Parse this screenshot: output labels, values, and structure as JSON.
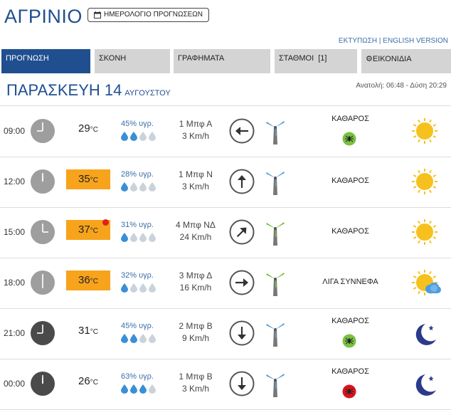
{
  "header": {
    "city": "ΑΓΡΙΝΙΟ",
    "calendar_label": "ΗΜΕΡΟΛΟΓΙΟ ΠΡΟΓΝΩΣΕΩΝ",
    "print_label": "ΕΚΤΥΠΩΣΗ",
    "separator": "|",
    "english_label": "ENGLISH VERSION"
  },
  "tabs": [
    {
      "label": "ΠΡΟΓΝΩΣΗ",
      "active": true
    },
    {
      "label": "ΣΚΟΝΗ"
    },
    {
      "label": "ΓΡΑΦΗΜΑΤΑ"
    },
    {
      "label": "ΣΤΑΘΜΟΙ  [1]"
    },
    {
      "label": "ΕΙΚΟΝΙΔΙΑ"
    }
  ],
  "day": {
    "title": "ΠΑΡΑΣΚΕΥΗ 14",
    "month": "ΑΥΓΟΥΣΤΟΥ",
    "sun": "Ανατολή: 06:48  - Δύση 20:29"
  },
  "units": {
    "temp": "°C"
  },
  "rows": [
    {
      "time": "09:00",
      "clock_hour": 9,
      "night": false,
      "temp": "29",
      "hot": false,
      "alert": false,
      "humidity": "45% υγρ.",
      "drops": 2,
      "wind_bf": "1 Μπφ Α",
      "wind_kmh": "3 Km/h",
      "dir": "west",
      "turbine": "blue",
      "cond": "ΚΑΘΑΡΟΣ",
      "badge": "green",
      "icon": "sun"
    },
    {
      "time": "12:00",
      "clock_hour": 12,
      "night": false,
      "temp": "35",
      "hot": true,
      "alert": false,
      "humidity": "28% υγρ.",
      "drops": 1,
      "wind_bf": "1 Μπφ Ν",
      "wind_kmh": "3 Km/h",
      "dir": "north",
      "turbine": "blue",
      "cond": "ΚΑΘΑΡΟΣ",
      "badge": "",
      "icon": "sun"
    },
    {
      "time": "15:00",
      "clock_hour": 15,
      "night": false,
      "temp": "37",
      "hot": true,
      "alert": true,
      "humidity": "31% υγρ.",
      "drops": 1,
      "wind_bf": "4 Μπφ ΝΔ",
      "wind_kmh": "24 Km/h",
      "dir": "northeast",
      "turbine": "green",
      "cond": "ΚΑΘΑΡΟΣ",
      "badge": "",
      "icon": "sun"
    },
    {
      "time": "18:00",
      "clock_hour": 18,
      "night": false,
      "temp": "36",
      "hot": true,
      "alert": false,
      "humidity": "32% υγρ.",
      "drops": 1,
      "wind_bf": "3 Μπφ Δ",
      "wind_kmh": "16 Km/h",
      "dir": "east",
      "turbine": "green",
      "cond": "ΛΙΓΑ ΣΥΝΝΕΦΑ",
      "badge": "",
      "icon": "sun-cloud"
    },
    {
      "time": "21:00",
      "clock_hour": 21,
      "night": true,
      "temp": "31",
      "hot": false,
      "alert": false,
      "humidity": "45% υγρ.",
      "drops": 2,
      "wind_bf": "2 Μπφ Β",
      "wind_kmh": "9 Km/h",
      "dir": "south",
      "turbine": "blue",
      "cond": "ΚΑΘΑΡΟΣ",
      "badge": "green",
      "icon": "moon"
    },
    {
      "time": "00:00",
      "clock_hour": 0,
      "night": true,
      "temp": "26",
      "hot": false,
      "alert": false,
      "humidity": "63% υγρ.",
      "drops": 3,
      "wind_bf": "1 Μπφ Β",
      "wind_kmh": "3 Km/h",
      "dir": "south",
      "turbine": "blue",
      "cond": "ΚΑΘΑΡΟΣ",
      "badge": "red",
      "icon": "moon"
    }
  ],
  "colors": {
    "brand": "#1f4f8f",
    "hot": "#f7a31c",
    "drop": "#3a8fd6",
    "drop_empty": "#c9d3dc",
    "sun": "#f6c11f",
    "moon": "#2c3a8c",
    "alert": "#e0201b",
    "badge_green": "#7ac143",
    "badge_red": "#d8141e"
  }
}
